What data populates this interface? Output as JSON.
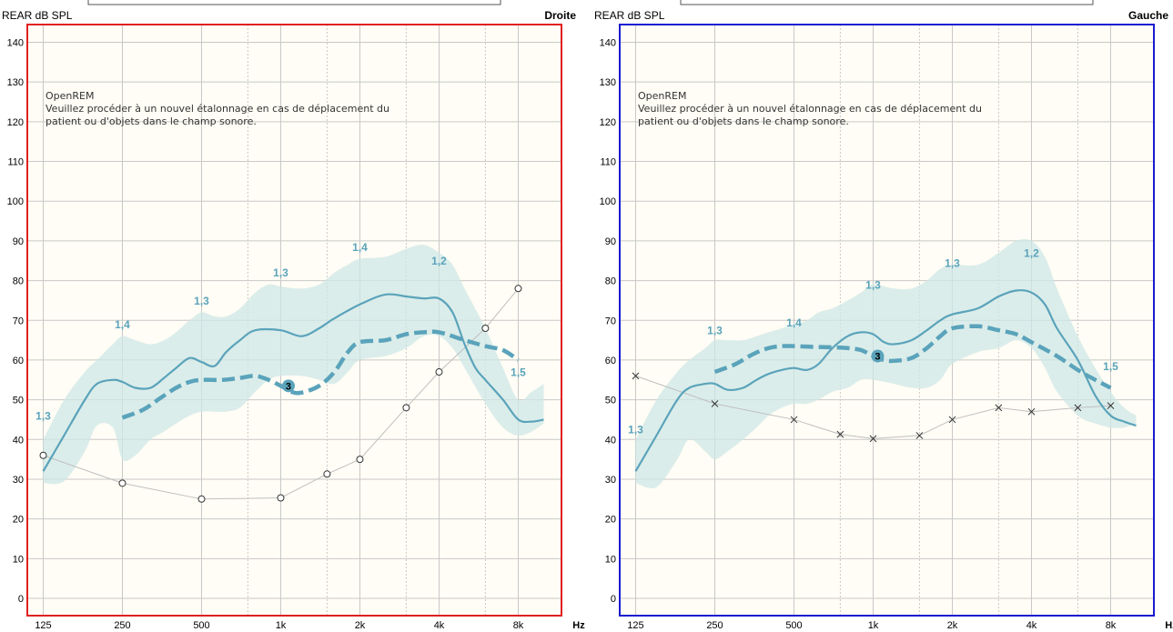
{
  "colors": {
    "plot_bg": "#fffdf5",
    "grid": "#c8c8c8",
    "band": "#cfe7e6",
    "curve": "#5aa3bb",
    "curve_dashed": "#5aa3bb",
    "threshold": "#bfbfbf",
    "right_border": "#e02020",
    "left_border": "#1a1ad0"
  },
  "chart_data": [
    {
      "type": "line",
      "title": "Droite",
      "ylabel": "REAR dB SPL",
      "xlabel": "Hz",
      "x_scale": "log",
      "ylim": [
        0,
        140
      ],
      "y_ticks": [
        0,
        10,
        20,
        30,
        40,
        50,
        60,
        70,
        80,
        90,
        100,
        110,
        120,
        130,
        140
      ],
      "x_ticks": [
        "125",
        "250",
        "500",
        "1k",
        "2k",
        "4k",
        "8k"
      ],
      "x_tick_values": [
        125,
        250,
        500,
        1000,
        2000,
        4000,
        8000
      ],
      "x_minor": [
        750,
        1500,
        3000,
        6000
      ],
      "note": [
        "OpenREM",
        "Veuillez procéder à un nouvel étalonnage en cas de déplacement du",
        "patient ou d'objets dans le champ sonore."
      ],
      "marker": "3",
      "marker_at": [
        1070,
        53.5
      ],
      "series": [
        {
          "role": "curve",
          "x": [
            125,
            150,
            180,
            200,
            230,
            250,
            280,
            320,
            360,
            400,
            450,
            500,
            560,
            620,
            700,
            800,
            1000,
            1200,
            1400,
            1600,
            2000,
            2500,
            3000,
            3500,
            4000,
            4500,
            5000,
            5500,
            6000,
            7000,
            8000,
            9000,
            10000
          ],
          "values": [
            32,
            41,
            50,
            54,
            55,
            54.5,
            53,
            53,
            55.5,
            58,
            60.5,
            59.5,
            58.5,
            62,
            65,
            67.5,
            67.5,
            66,
            68,
            70.5,
            74,
            76.5,
            76,
            75.5,
            75.5,
            72,
            64,
            58,
            55,
            50,
            45,
            44.5,
            45
          ]
        },
        {
          "role": "dashed",
          "x": [
            250,
            300,
            350,
            400,
            450,
            500,
            600,
            700,
            800,
            900,
            1000,
            1100,
            1200,
            1400,
            1600,
            1800,
            2000,
            2500,
            3000,
            3500,
            4000,
            5000,
            6000,
            7000,
            8000
          ],
          "values": [
            45.5,
            47.5,
            50.5,
            53,
            54.5,
            55,
            55,
            55.5,
            56,
            55,
            53.5,
            52,
            51.8,
            53.5,
            57,
            62,
            64.5,
            65,
            66.5,
            67,
            67,
            65,
            63.5,
            62.5,
            60
          ]
        },
        {
          "role": "band_upper",
          "x": [
            125,
            150,
            180,
            200,
            230,
            250,
            280,
            320,
            360,
            400,
            450,
            500,
            560,
            620,
            700,
            800,
            900,
            1000,
            1200,
            1400,
            1600,
            1800,
            2000,
            2500,
            3000,
            3500,
            4000,
            4500,
            5000,
            6000,
            7000,
            8000,
            9000,
            10000
          ],
          "values": [
            40,
            50,
            57,
            60,
            64,
            66,
            65,
            64,
            65,
            67,
            70,
            72,
            71,
            71,
            73,
            77,
            79,
            78.5,
            78,
            79,
            82,
            84,
            85.5,
            86,
            88,
            89,
            87,
            84,
            78,
            68,
            58,
            50,
            52,
            54
          ]
        },
        {
          "role": "band_lower",
          "x": [
            125,
            150,
            180,
            200,
            230,
            250,
            280,
            320,
            360,
            400,
            450,
            500,
            560,
            620,
            700,
            800,
            900,
            1000,
            1200,
            1400,
            1600,
            1800,
            2000,
            2500,
            3000,
            3500,
            4000,
            4500,
            5000,
            6000,
            7000,
            8000,
            9000,
            10000
          ],
          "values": [
            29,
            29.5,
            37,
            43.5,
            43,
            35,
            36,
            40,
            42,
            44,
            46,
            47,
            47,
            47,
            48,
            52,
            55,
            56,
            56,
            55,
            54,
            57,
            60,
            61,
            63,
            66,
            66,
            63,
            58,
            49,
            43,
            41,
            42,
            44
          ]
        },
        {
          "role": "threshold",
          "marker": "circle",
          "x": [
            125,
            250,
            500,
            1000,
            1500,
            2000,
            3000,
            4000,
            6000,
            8000
          ],
          "values": [
            36,
            29,
            25,
            25.3,
            31.3,
            35,
            48,
            57,
            68,
            78
          ]
        }
      ],
      "labels": [
        {
          "text": "1,3",
          "at": [
            125,
            45
          ]
        },
        {
          "text": "1,4",
          "at": [
            250,
            68
          ]
        },
        {
          "text": "1,3",
          "at": [
            500,
            74
          ]
        },
        {
          "text": "1,3",
          "at": [
            1000,
            81
          ]
        },
        {
          "text": "1,4",
          "at": [
            2000,
            87.5
          ]
        },
        {
          "text": "1,2",
          "at": [
            4000,
            84
          ]
        },
        {
          "text": "1,5",
          "at": [
            8000,
            56
          ]
        }
      ]
    },
    {
      "type": "line",
      "title": "Gauche",
      "ylabel": "REAR dB SPL",
      "xlabel": "Hz",
      "x_scale": "log",
      "ylim": [
        0,
        140
      ],
      "y_ticks": [
        0,
        10,
        20,
        30,
        40,
        50,
        60,
        70,
        80,
        90,
        100,
        110,
        120,
        130,
        140
      ],
      "x_ticks": [
        "125",
        "250",
        "500",
        "1k",
        "2k",
        "4k",
        "8k"
      ],
      "x_tick_values": [
        125,
        250,
        500,
        1000,
        2000,
        4000,
        8000
      ],
      "x_minor": [
        750,
        1500,
        3000,
        6000
      ],
      "note": [
        "OpenREM",
        "Veuillez procéder à un nouvel étalonnage en cas de déplacement du",
        "patient ou d'objets dans le champ sonore."
      ],
      "marker": "3",
      "marker_at": [
        1040,
        61
      ],
      "series": [
        {
          "role": "curve",
          "x": [
            125,
            150,
            180,
            200,
            230,
            250,
            280,
            320,
            360,
            400,
            450,
            500,
            560,
            620,
            700,
            800,
            900,
            1000,
            1100,
            1200,
            1400,
            1600,
            1800,
            2000,
            2500,
            3000,
            3500,
            4000,
            4500,
            5000,
            6000,
            7000,
            8000,
            9000,
            10000
          ],
          "values": [
            32,
            41,
            50,
            53,
            54,
            54,
            52.5,
            53,
            55,
            56.5,
            57.5,
            58,
            57.5,
            59,
            63,
            66,
            67,
            66.5,
            64.5,
            64,
            65,
            67.5,
            70,
            71.5,
            73,
            76,
            77.5,
            77,
            74,
            68,
            60,
            51,
            46,
            44.5,
            43.5
          ]
        },
        {
          "role": "dashed",
          "x": [
            250,
            300,
            350,
            400,
            450,
            500,
            600,
            700,
            800,
            900,
            1000,
            1100,
            1200,
            1400,
            1600,
            1800,
            2000,
            2500,
            3000,
            3500,
            4000,
            5000,
            6000,
            7000,
            8000
          ],
          "values": [
            57,
            59,
            61.5,
            63,
            63.5,
            63.5,
            63.3,
            63.2,
            63,
            62.5,
            61,
            60,
            59.8,
            60.5,
            63,
            66,
            68,
            68.5,
            67.5,
            66.5,
            64.5,
            61,
            57.5,
            55,
            53
          ]
        },
        {
          "role": "band_upper",
          "x": [
            125,
            150,
            180,
            200,
            230,
            250,
            280,
            320,
            360,
            400,
            450,
            500,
            560,
            620,
            700,
            800,
            900,
            1000,
            1200,
            1400,
            1600,
            1800,
            2000,
            2500,
            3000,
            3500,
            4000,
            4500,
            5000,
            6000,
            7000,
            8000,
            9000,
            10000
          ],
          "values": [
            40,
            50,
            57,
            60,
            63,
            65,
            65,
            65,
            66,
            67,
            68,
            69,
            70,
            72,
            73,
            75,
            77,
            79,
            78,
            78,
            80,
            83,
            84,
            84,
            87,
            90,
            90,
            86,
            78,
            66,
            58,
            52,
            48,
            46
          ]
        },
        {
          "role": "band_lower",
          "x": [
            125,
            150,
            180,
            200,
            230,
            250,
            280,
            320,
            360,
            400,
            450,
            500,
            560,
            620,
            700,
            800,
            900,
            1000,
            1200,
            1400,
            1600,
            1800,
            2000,
            2500,
            3000,
            3500,
            4000,
            4500,
            5000,
            6000,
            7000,
            8000,
            9000,
            10000
          ],
          "values": [
            29,
            28,
            35,
            40,
            37,
            35,
            37,
            40,
            43,
            46,
            48,
            49,
            49,
            50,
            52,
            53,
            55,
            55,
            54,
            53,
            53,
            55,
            59,
            62,
            63,
            65,
            63,
            58,
            52,
            46,
            44,
            43,
            43,
            44
          ]
        },
        {
          "role": "threshold",
          "marker": "cross",
          "x": [
            125,
            250,
            500,
            750,
            1000,
            1500,
            2000,
            3000,
            4000,
            6000,
            8000
          ],
          "values": [
            56,
            49,
            45,
            41.3,
            40.2,
            41,
            45,
            48,
            47,
            48,
            48.5
          ]
        }
      ],
      "labels": [
        {
          "text": "1,3",
          "at": [
            125,
            41.5
          ]
        },
        {
          "text": "1,3",
          "at": [
            250,
            66.5
          ]
        },
        {
          "text": "1,4",
          "at": [
            500,
            68.5
          ]
        },
        {
          "text": "1,3",
          "at": [
            1000,
            78
          ]
        },
        {
          "text": "1,3",
          "at": [
            2000,
            83.5
          ]
        },
        {
          "text": "1,2",
          "at": [
            4000,
            86
          ]
        },
        {
          "text": "1,5",
          "at": [
            8000,
            57.5
          ]
        }
      ]
    }
  ]
}
